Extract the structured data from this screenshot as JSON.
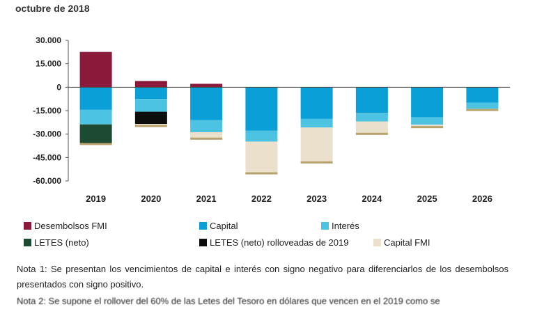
{
  "subtitle": "octubre de 2018",
  "chart_data": {
    "type": "bar",
    "stacked": true,
    "categories": [
      "2019",
      "2020",
      "2021",
      "2022",
      "2023",
      "2024",
      "2025",
      "2026"
    ],
    "y_ticks": [
      "30.000",
      "15.000",
      "0",
      "-15.000",
      "-30.000",
      "-45.000",
      "-60.000"
    ],
    "ylim": [
      -60000,
      30000
    ],
    "grid": false,
    "legend_position": "bottom",
    "series": [
      {
        "name": "Desembolsos FMI",
        "color": "#8B1A3A",
        "values": [
          22600,
          4000,
          2200,
          0,
          0,
          0,
          0,
          0
        ]
      },
      {
        "name": "Capital",
        "color": "#0A9FD6",
        "values": [
          -14500,
          -7500,
          -21000,
          -27700,
          -20300,
          -16400,
          -19200,
          -10000
        ]
      },
      {
        "name": "Interés",
        "color": "#4CC3E2",
        "values": [
          -9300,
          -8200,
          -7800,
          -7100,
          -5500,
          -5500,
          -4800,
          -3800
        ]
      },
      {
        "name": "LETES (neto)",
        "color": "#1C4A33",
        "values": [
          -12000,
          0,
          0,
          0,
          0,
          0,
          0,
          0
        ]
      },
      {
        "name": "LETES (neto) rolloveadas de 2019",
        "color": "#0D0D0D",
        "values": [
          0,
          -7800,
          0,
          0,
          0,
          0,
          0,
          0
        ]
      },
      {
        "name": "Capital FMI",
        "color": "#EAE0CC",
        "values": [
          -1200,
          -2000,
          -4800,
          -21000,
          -23000,
          -8600,
          -2200,
          -1400
        ]
      }
    ],
    "series_underline_color": "#B8A36E"
  },
  "legend_rows": [
    [
      0,
      1,
      2
    ],
    [
      3,
      4,
      5
    ]
  ],
  "notes": {
    "note1": "Nota 1: Se presentan los vencimientos de capital e interés con signo negativo para diferenciarlos de los desembolsos presentados con signo positivo.",
    "note2": "Nota 2: Se supone el rollover del 60% de las Letes del Tesoro en dólares que vencen en el 2019 como se"
  }
}
